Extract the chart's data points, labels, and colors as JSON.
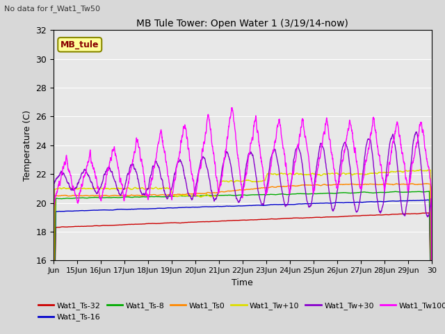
{
  "title": "MB Tule Tower: Open Water 1 (3/19/14-now)",
  "suptitle": "No data for f_Wat1_Tw50",
  "xlabel": "Time",
  "ylabel": "Temperature (C)",
  "ylim": [
    16,
    32
  ],
  "xtick_labels": [
    "Jun",
    "15Jun",
    "16Jun",
    "17Jun",
    "18Jun",
    "19Jun",
    "20Jun",
    "21Jun",
    "22Jun",
    "23Jun",
    "24Jun",
    "25Jun",
    "26Jun",
    "27Jun",
    "28Jun",
    "29Jun",
    "30"
  ],
  "ytick_positions": [
    16,
    18,
    20,
    22,
    24,
    26,
    28,
    30,
    32
  ],
  "bg_color": "#d8d8d8",
  "plot_bg_color": "#e8e8e8",
  "series": {
    "Wat1_Ts-32": {
      "color": "#cc0000",
      "lw": 1.0
    },
    "Wat1_Ts-16": {
      "color": "#0000cc",
      "lw": 1.0
    },
    "Wat1_Ts-8": {
      "color": "#00aa00",
      "lw": 1.0
    },
    "Wat1_Ts0": {
      "color": "#ff8800",
      "lw": 1.0
    },
    "Wat1_Tw+10": {
      "color": "#dddd00",
      "lw": 1.0
    },
    "Wat1_Tw+30": {
      "color": "#8800cc",
      "lw": 1.0
    },
    "Wat1_Tw100": {
      "color": "#ff00ff",
      "lw": 1.0
    }
  },
  "mb_tule_box": {
    "text": "MB_tule",
    "color": "#880000",
    "bg": "#ffff99",
    "edge": "#888800"
  },
  "legend_ncol_row1": 3,
  "legend_ncol_row2": 1
}
